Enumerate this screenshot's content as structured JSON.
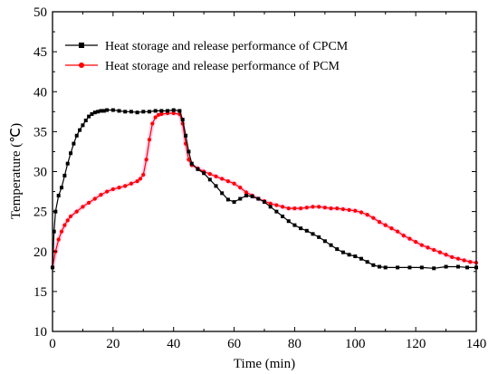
{
  "chart_data": {
    "type": "line",
    "xlabel": "Time (min)",
    "ylabel": "Temperature (℃)",
    "xlim": [
      0,
      140
    ],
    "ylim": [
      10,
      50
    ],
    "xticks": [
      "0",
      "20",
      "40",
      "60",
      "80",
      "100",
      "120",
      "140"
    ],
    "yticks": [
      "10",
      "15",
      "20",
      "25",
      "30",
      "35",
      "40",
      "45",
      "50"
    ],
    "grid": false,
    "legend_position": "top-left",
    "series": [
      {
        "name": "Heat storage and release performance of CPCM",
        "color": "#000000",
        "marker": "square",
        "points": [
          [
            0,
            18.0
          ],
          [
            0.5,
            22.5
          ],
          [
            1,
            25.0
          ],
          [
            2,
            27.0
          ],
          [
            3,
            28.0
          ],
          [
            4,
            29.5
          ],
          [
            5,
            31.0
          ],
          [
            6,
            32.3
          ],
          [
            7,
            33.5
          ],
          [
            8,
            34.5
          ],
          [
            9,
            35.2
          ],
          [
            10,
            35.8
          ],
          [
            11,
            36.4
          ],
          [
            12,
            36.9
          ],
          [
            13,
            37.2
          ],
          [
            14,
            37.4
          ],
          [
            15,
            37.5
          ],
          [
            16,
            37.6
          ],
          [
            17,
            37.6
          ],
          [
            18,
            37.7
          ],
          [
            20,
            37.7
          ],
          [
            22,
            37.6
          ],
          [
            24,
            37.5
          ],
          [
            26,
            37.5
          ],
          [
            28,
            37.4
          ],
          [
            30,
            37.5
          ],
          [
            32,
            37.5
          ],
          [
            34,
            37.6
          ],
          [
            36,
            37.6
          ],
          [
            38,
            37.6
          ],
          [
            40,
            37.7
          ],
          [
            42,
            37.6
          ],
          [
            43,
            36.5
          ],
          [
            44,
            34.5
          ],
          [
            45,
            32.5
          ],
          [
            46,
            31.0
          ],
          [
            48,
            30.3
          ],
          [
            50,
            29.8
          ],
          [
            52,
            29.0
          ],
          [
            54,
            28.2
          ],
          [
            56,
            27.3
          ],
          [
            58,
            26.5
          ],
          [
            60,
            26.2
          ],
          [
            62,
            26.6
          ],
          [
            64,
            27.0
          ],
          [
            66,
            26.9
          ],
          [
            68,
            26.6
          ],
          [
            70,
            26.2
          ],
          [
            72,
            25.6
          ],
          [
            74,
            25.0
          ],
          [
            76,
            24.4
          ],
          [
            78,
            23.8
          ],
          [
            80,
            23.3
          ],
          [
            82,
            22.9
          ],
          [
            84,
            22.6
          ],
          [
            86,
            22.2
          ],
          [
            88,
            21.8
          ],
          [
            90,
            21.3
          ],
          [
            92,
            20.8
          ],
          [
            94,
            20.3
          ],
          [
            96,
            19.9
          ],
          [
            98,
            19.6
          ],
          [
            100,
            19.4
          ],
          [
            102,
            19.1
          ],
          [
            104,
            18.7
          ],
          [
            106,
            18.3
          ],
          [
            108,
            18.1
          ],
          [
            110,
            18.0
          ],
          [
            114,
            18.0
          ],
          [
            118,
            18.0
          ],
          [
            122,
            18.0
          ],
          [
            126,
            17.9
          ],
          [
            130,
            18.1
          ],
          [
            134,
            18.1
          ],
          [
            137,
            18.0
          ],
          [
            140,
            18.0
          ]
        ]
      },
      {
        "name": "Heat storage and release performance of PCM",
        "color": "#ff0000",
        "marker": "circle",
        "points": [
          [
            0,
            18.0
          ],
          [
            1,
            20.0
          ],
          [
            2,
            21.5
          ],
          [
            3,
            22.5
          ],
          [
            4,
            23.3
          ],
          [
            5,
            23.9
          ],
          [
            6,
            24.4
          ],
          [
            8,
            25.0
          ],
          [
            10,
            25.6
          ],
          [
            12,
            26.1
          ],
          [
            14,
            26.6
          ],
          [
            16,
            27.1
          ],
          [
            18,
            27.5
          ],
          [
            20,
            27.8
          ],
          [
            22,
            28.0
          ],
          [
            24,
            28.2
          ],
          [
            26,
            28.5
          ],
          [
            28,
            28.8
          ],
          [
            29,
            29.1
          ],
          [
            30,
            29.6
          ],
          [
            31,
            31.5
          ],
          [
            32,
            34.0
          ],
          [
            33,
            36.0
          ],
          [
            34,
            36.8
          ],
          [
            35,
            37.1
          ],
          [
            36,
            37.2
          ],
          [
            38,
            37.3
          ],
          [
            40,
            37.3
          ],
          [
            42,
            37.2
          ],
          [
            43,
            36.0
          ],
          [
            44,
            33.5
          ],
          [
            45,
            31.5
          ],
          [
            46,
            30.8
          ],
          [
            48,
            30.4
          ],
          [
            50,
            30.0
          ],
          [
            52,
            29.7
          ],
          [
            54,
            29.4
          ],
          [
            56,
            29.1
          ],
          [
            58,
            28.8
          ],
          [
            60,
            28.5
          ],
          [
            62,
            28.0
          ],
          [
            64,
            27.4
          ],
          [
            66,
            27.0
          ],
          [
            68,
            26.6
          ],
          [
            70,
            26.3
          ],
          [
            72,
            26.0
          ],
          [
            74,
            25.8
          ],
          [
            76,
            25.6
          ],
          [
            78,
            25.4
          ],
          [
            80,
            25.4
          ],
          [
            82,
            25.4
          ],
          [
            84,
            25.5
          ],
          [
            86,
            25.6
          ],
          [
            88,
            25.6
          ],
          [
            90,
            25.5
          ],
          [
            92,
            25.4
          ],
          [
            94,
            25.4
          ],
          [
            96,
            25.3
          ],
          [
            98,
            25.2
          ],
          [
            100,
            25.1
          ],
          [
            102,
            24.9
          ],
          [
            104,
            24.6
          ],
          [
            106,
            24.2
          ],
          [
            108,
            23.7
          ],
          [
            110,
            23.3
          ],
          [
            112,
            22.9
          ],
          [
            114,
            22.5
          ],
          [
            116,
            22.0
          ],
          [
            118,
            21.6
          ],
          [
            120,
            21.2
          ],
          [
            122,
            20.8
          ],
          [
            124,
            20.5
          ],
          [
            126,
            20.2
          ],
          [
            128,
            19.9
          ],
          [
            130,
            19.6
          ],
          [
            132,
            19.3
          ],
          [
            134,
            19.1
          ],
          [
            136,
            18.9
          ],
          [
            138,
            18.7
          ],
          [
            140,
            18.6
          ]
        ]
      }
    ]
  }
}
